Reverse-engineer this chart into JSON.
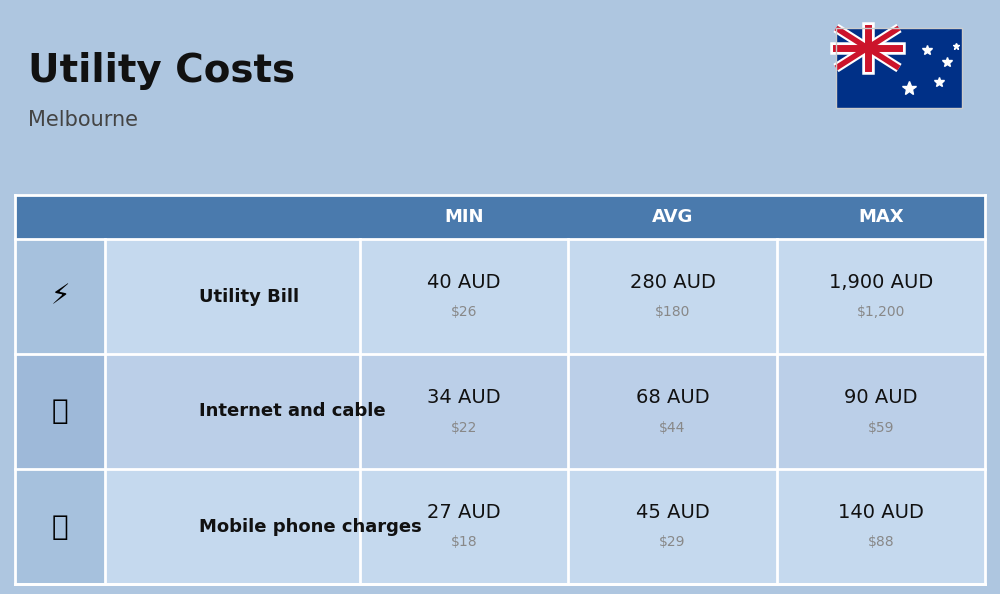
{
  "title": "Utility Costs",
  "subtitle": "Melbourne",
  "background_color": "#aec6e0",
  "header_color": "#4a7aad",
  "header_text_color": "#ffffff",
  "row_color_even": "#c5d9ee",
  "row_color_odd": "#bbcfe8",
  "separator_color": "#ffffff",
  "text_dark": "#111111",
  "text_gray": "#888888",
  "columns": [
    "MIN",
    "AVG",
    "MAX"
  ],
  "rows": [
    {
      "label": "Utility Bill",
      "min_aud": "40 AUD",
      "min_usd": "$26",
      "avg_aud": "280 AUD",
      "avg_usd": "$180",
      "max_aud": "1,900 AUD",
      "max_usd": "$1,200"
    },
    {
      "label": "Internet and cable",
      "min_aud": "34 AUD",
      "min_usd": "$22",
      "avg_aud": "68 AUD",
      "avg_usd": "$44",
      "max_aud": "90 AUD",
      "max_usd": "$59"
    },
    {
      "label": "Mobile phone charges",
      "min_aud": "27 AUD",
      "min_usd": "$18",
      "avg_aud": "45 AUD",
      "avg_usd": "$29",
      "max_aud": "140 AUD",
      "max_usd": "$88"
    }
  ],
  "title_fontsize": 28,
  "subtitle_fontsize": 15,
  "header_fontsize": 13,
  "label_fontsize": 13,
  "aud_fontsize": 14,
  "usd_fontsize": 10,
  "flag_blue": "#003087",
  "flag_red": "#CC142B",
  "flag_white": "#FFFFFF",
  "fig_width": 10.0,
  "fig_height": 5.94,
  "dpi": 100
}
